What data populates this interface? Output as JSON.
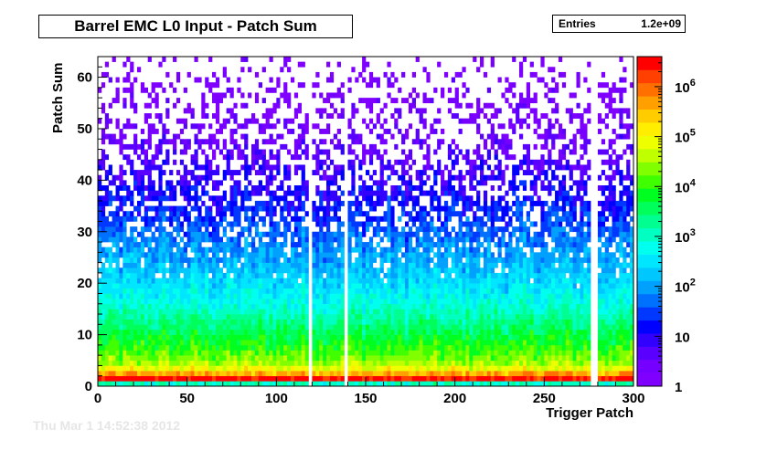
{
  "title": "Barrel EMC L0 Input - Patch Sum",
  "stats": {
    "entries_label": "Entries",
    "entries_value": "1.2e+09"
  },
  "stamp": "Thu Mar  1 14:52:38 2012",
  "chart_data": {
    "type": "heatmap",
    "xlabel": "Trigger Patch",
    "ylabel": "Patch Sum",
    "xlim": [
      0,
      300
    ],
    "ylim": [
      0,
      64
    ],
    "x_ticks": [
      0,
      50,
      100,
      150,
      200,
      250,
      300
    ],
    "y_ticks": [
      0,
      10,
      20,
      30,
      40,
      50,
      60
    ],
    "z_scale": "log",
    "z_range": [
      1,
      4000000
    ],
    "z_ticks": [
      {
        "value": 1,
        "label": "1"
      },
      {
        "value": 10,
        "label": "10"
      },
      {
        "value": 100,
        "label": "10^2"
      },
      {
        "value": 1000,
        "label": "10^3"
      },
      {
        "value": 10000,
        "label": "10^4"
      },
      {
        "value": 100000,
        "label": "10^5"
      },
      {
        "value": 1000000,
        "label": "10^6"
      }
    ],
    "palette": [
      "#8000ff",
      "#7600ff",
      "#5a00ff",
      "#3200ff",
      "#0000ff",
      "#0038ff",
      "#0070ff",
      "#00a0ff",
      "#00c8ff",
      "#00e6ff",
      "#00ffee",
      "#00ffc0",
      "#00ff90",
      "#00ff5a",
      "#00ff20",
      "#40ff00",
      "#80ff00",
      "#c0ff00",
      "#eeff00",
      "#ffee00",
      "#ffcc00",
      "#ffa000",
      "#ff7000",
      "#ff4000",
      "#ff0000"
    ],
    "dead_channels": [
      118,
      139,
      277,
      278,
      279
    ],
    "row_profile": {
      "description_free": true,
      "patch_sum": [
        0,
        1,
        2,
        3,
        4,
        5,
        7,
        10,
        15,
        20,
        25,
        30,
        35,
        40,
        45,
        50,
        55,
        60,
        63
      ],
      "log10_counts": [
        3.0,
        6.5,
        5.6,
        4.9,
        4.5,
        4.3,
        4.0,
        3.6,
        2.9,
        2.4,
        2.0,
        1.6,
        1.2,
        0.9,
        0.6,
        0.4,
        0.25,
        0.15,
        0.1
      ]
    }
  }
}
